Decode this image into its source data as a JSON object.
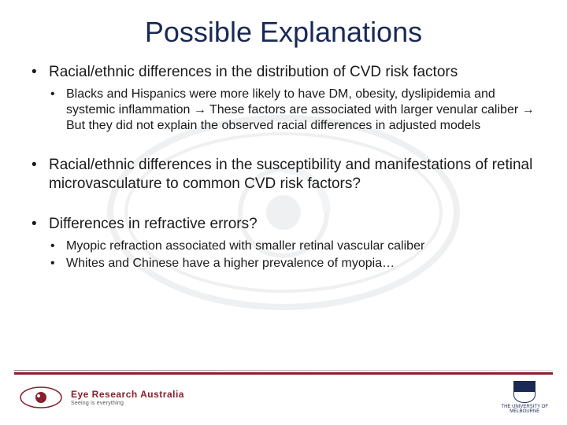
{
  "title": {
    "text": "Possible Explanations",
    "color": "#1a2a55",
    "fontsize": 36
  },
  "bullets": [
    {
      "text": "Racial/ethnic differences in the distribution of CVD risk factors",
      "sub": [
        "Blacks and Hispanics were more likely to have DM, obesity, dyslipidemia and systemic inflammation → These factors are associated with larger venular caliber → But they did not explain the observed racial differences in adjusted models"
      ]
    },
    {
      "text": "Racial/ethnic differences in the susceptibility and manifestations of retinal microvasculature to common CVD risk factors?",
      "sub": []
    },
    {
      "text": "Differences in refractive errors?",
      "sub": [
        "Myopic refraction associated with smaller retinal vascular caliber",
        "Whites and Chinese have a higher prevalence of myopia…"
      ]
    }
  ],
  "footer": {
    "accent_color": "#8a1e2d",
    "era_name": "Eye Research Australia",
    "era_sub": "Seeing is everything",
    "uni_name": "THE UNIVERSITY OF\nMELBOURNE"
  },
  "style": {
    "body_text_color": "#1a1a1a",
    "background": "#ffffff",
    "main_fontsize": 19,
    "sub_fontsize": 16,
    "watermark_color": "#7a8a95"
  }
}
